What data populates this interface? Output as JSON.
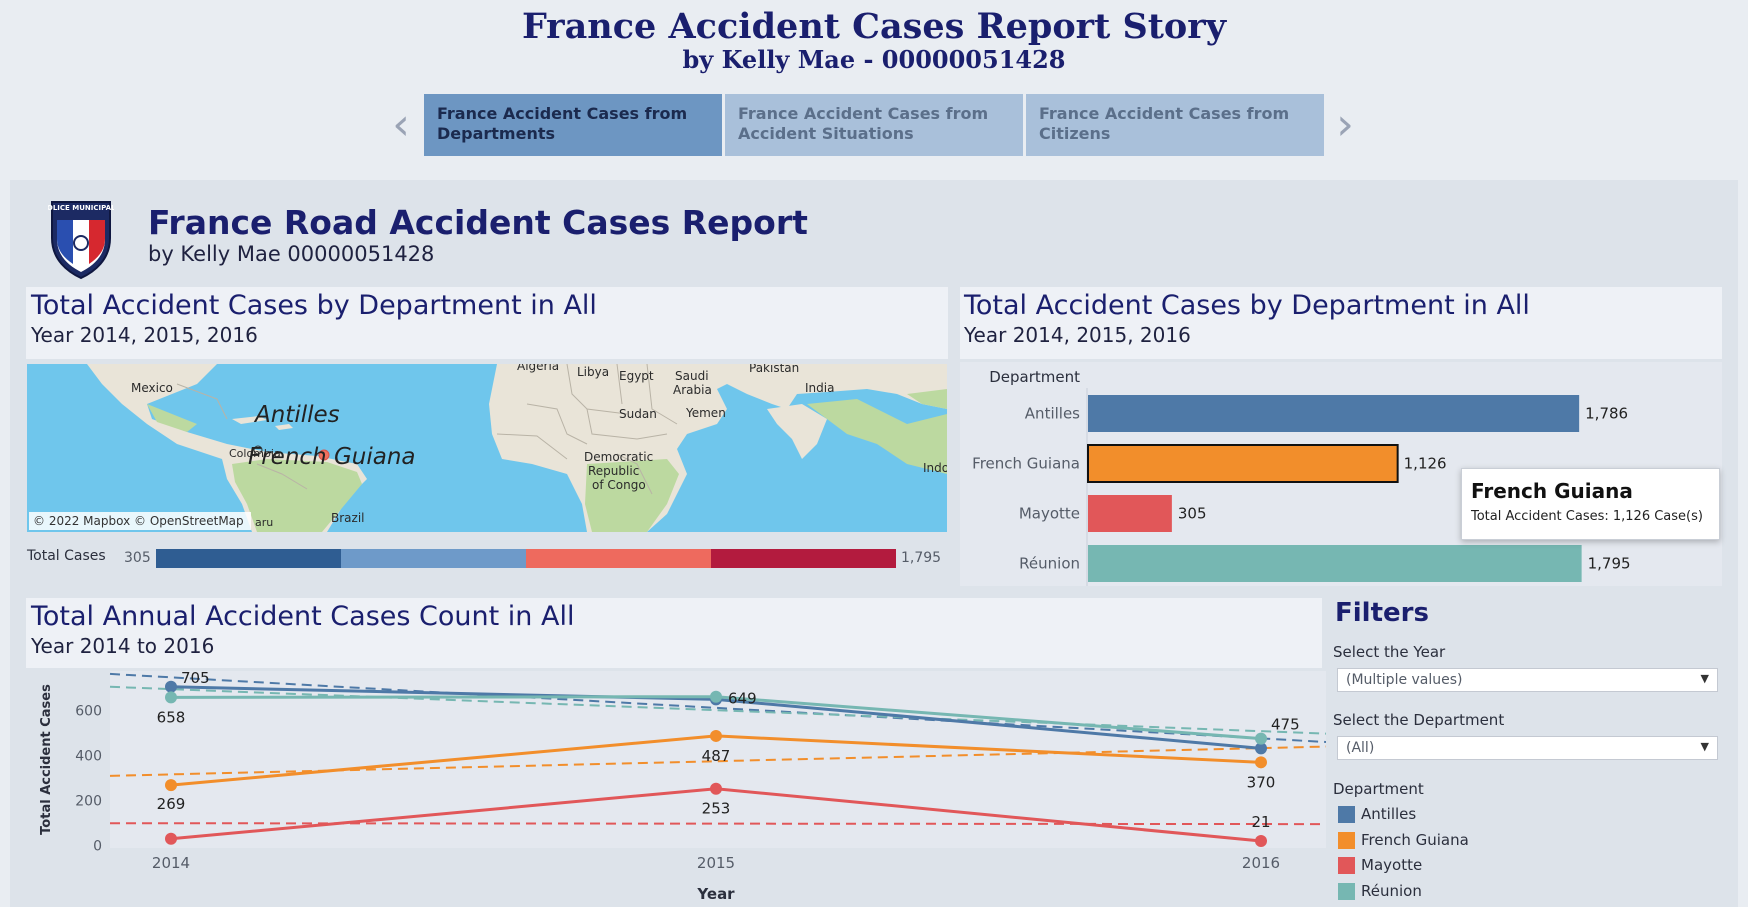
{
  "story": {
    "title": "France Accident Cases Report Story",
    "subtitle": "by Kelly Mae - 00000051428",
    "prev_icon": "chevron-left-icon",
    "next_icon": "chevron-right-icon",
    "tabs": [
      {
        "label": "France Accident Cases from Departments",
        "active": true
      },
      {
        "label": "France Accident Cases from Accident Situations",
        "active": false
      },
      {
        "label": "France Accident Cases from Citizens",
        "active": false
      }
    ]
  },
  "header": {
    "logo_text": "POLICE MUNICIPALE",
    "title": "France Road Accident Cases Report",
    "subtitle": "by Kelly Mae 00000051428"
  },
  "map_panel": {
    "title": "Total Accident Cases by Department in All",
    "subtitle": "Year 2014, 2015, 2016",
    "labels": {
      "mexico": "Mexico",
      "algeria": "Algeria",
      "libya": "Libya",
      "egypt": "Egypt",
      "saudi1": "Saudi",
      "saudi2": "Arabia",
      "pakistan": "Pakistan",
      "india": "India",
      "antilles": "Antilles",
      "sudan": "Sudan",
      "yemen": "Yemen",
      "colombia": "Colombia",
      "french_guiana": "French Guiana",
      "drc1": "Democratic",
      "drc2": "Republic",
      "drc3": "of Congo",
      "indo": "Indo",
      "brazil": "Brazil",
      "peru": "aru"
    },
    "attribution": "© 2022 Mapbox © OpenStreetMap",
    "scale": {
      "label": "Total Cases",
      "min": "305",
      "max": "1,795",
      "colors": [
        "#2f5d92",
        "#6e9ac9",
        "#ee6a5e",
        "#b31b3e"
      ]
    }
  },
  "bar_panel": {
    "title": "Total Accident Cases by Department in All",
    "subtitle": "Year 2014, 2015, 2016",
    "tooltip": {
      "title": "French Guiana",
      "text": "Total Accident Cases: 1,126 Case(s)"
    }
  },
  "line_panel": {
    "title": "Total Annual Accident Cases Count in All",
    "subtitle": "Year 2014 to 2016"
  },
  "filters": {
    "title": "Filters",
    "year_label": "Select the Year",
    "year_value": "(Multiple values)",
    "dept_label": "Select the Department",
    "dept_value": "(All)",
    "dropdown_icon": "caret-down-icon",
    "legend_title": "Department",
    "legend": [
      {
        "name": "Antilles",
        "color": "#4e79a7"
      },
      {
        "name": "French Guiana",
        "color": "#f28e2b"
      },
      {
        "name": "Mayotte",
        "color": "#e15759"
      },
      {
        "name": "Réunion",
        "color": "#76b7b2"
      }
    ]
  },
  "chart_data": [
    {
      "type": "bar",
      "orientation": "horizontal",
      "category_label": "Department",
      "categories": [
        "Antilles",
        "French Guiana",
        "Mayotte",
        "Réunion"
      ],
      "values": [
        1786,
        1126,
        305,
        1795
      ],
      "value_labels": [
        "1,786",
        "1,126",
        "305",
        "1,795"
      ],
      "colors": [
        "#4e79a7",
        "#f28e2b",
        "#e15759",
        "#76b7b2"
      ],
      "highlighted": "French Guiana",
      "xlim": [
        0,
        2000
      ]
    },
    {
      "type": "line",
      "x": [
        "2014",
        "2015",
        "2016"
      ],
      "xlabel": "Year",
      "ylabel": "Total Accident Cases",
      "y_ticks": [
        "0",
        "200",
        "400",
        "600"
      ],
      "ylim": [
        -10,
        775
      ],
      "grid": false,
      "trend_lines": true,
      "series": [
        {
          "name": "Antilles",
          "color": "#4e79a7",
          "values": [
            705,
            649,
            432
          ],
          "labels": [
            "705",
            "649",
            ""
          ],
          "trend": [
            762,
            460
          ]
        },
        {
          "name": "French Guiana",
          "color": "#f28e2b",
          "values": [
            269,
            487,
            370
          ],
          "labels": [
            "269",
            "487",
            "370"
          ],
          "trend": [
            310,
            440
          ]
        },
        {
          "name": "Mayotte",
          "color": "#e15759",
          "values": [
            31,
            253,
            21
          ],
          "labels": [
            "",
            "253",
            "21"
          ],
          "trend": [
            100,
            96
          ]
        },
        {
          "name": "Réunion",
          "color": "#76b7b2",
          "values": [
            658,
            661,
            475
          ],
          "labels": [
            "658",
            "",
            "475"
          ],
          "trend": [
            705,
            497
          ]
        }
      ]
    }
  ]
}
